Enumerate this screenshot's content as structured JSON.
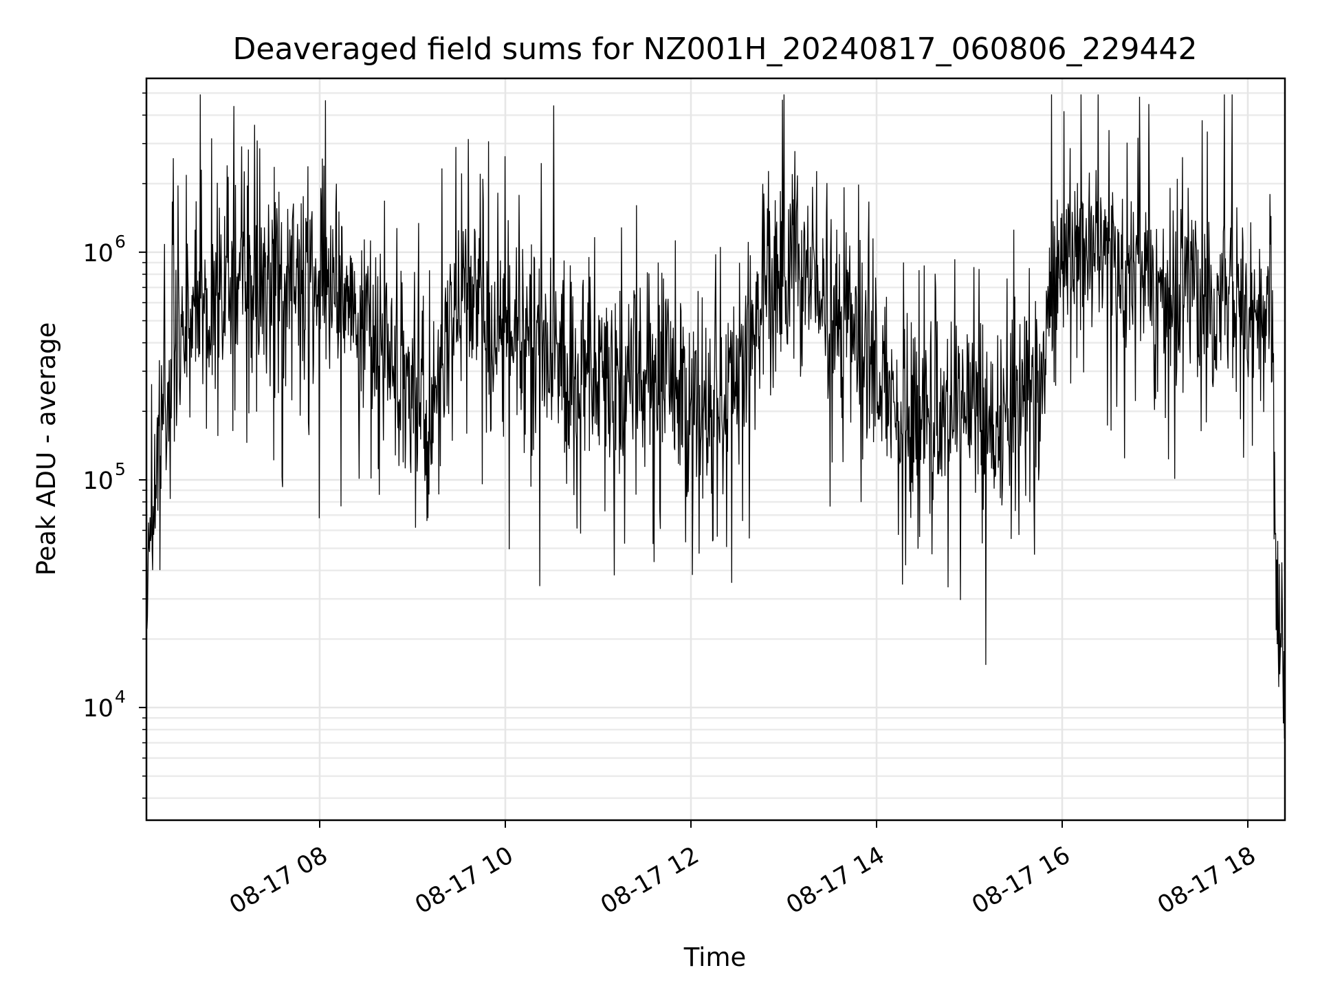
{
  "chart_data": {
    "type": "line",
    "title": "Deaveraged field sums for NZ001H_20240817_060806_229442",
    "xlabel": "Time",
    "ylabel": "Peak ADU - average",
    "x_start": "2024-08-17 06:08:06",
    "x_end": "2024-08-17 18:24:00",
    "xlim": [
      "2024-08-17 06:08",
      "2024-08-17 18:24"
    ],
    "ylim": [
      3200,
      5800000
    ],
    "yscale": "log",
    "grid": true,
    "line_color": "#000000",
    "x_ticks": [
      {
        "label": "08-17 08",
        "time": "2024-08-17 08:00"
      },
      {
        "label": "08-17 10",
        "time": "2024-08-17 10:00"
      },
      {
        "label": "08-17 12",
        "time": "2024-08-17 12:00"
      },
      {
        "label": "08-17 14",
        "time": "2024-08-17 14:00"
      },
      {
        "label": "08-17 16",
        "time": "2024-08-17 16:00"
      },
      {
        "label": "08-17 18",
        "time": "2024-08-17 18:00"
      }
    ],
    "y_ticks": [
      {
        "base": "10",
        "exp": "4",
        "value": 10000
      },
      {
        "base": "10",
        "exp": "5",
        "value": 100000
      },
      {
        "base": "10",
        "exp": "6",
        "value": 1000000
      }
    ],
    "series": [
      {
        "points": [
          [
            "2024-08-17 06:08",
            30000
          ],
          [
            "2024-08-17 06:12",
            90000
          ],
          [
            "2024-08-17 06:18",
            180000
          ],
          [
            "2024-08-17 06:25",
            320000
          ],
          [
            "2024-08-17 06:35",
            480000
          ],
          [
            "2024-08-17 06:50",
            600000
          ],
          [
            "2024-08-17 07:05",
            700000
          ],
          [
            "2024-08-17 07:20",
            650000
          ],
          [
            "2024-08-17 07:35",
            720000
          ],
          [
            "2024-08-17 07:50",
            750000
          ],
          [
            "2024-08-17 08:05",
            650000
          ],
          [
            "2024-08-17 08:20",
            560000
          ],
          [
            "2024-08-17 08:35",
            500000
          ],
          [
            "2024-08-17 08:45",
            340000
          ],
          [
            "2024-08-17 08:55",
            240000
          ],
          [
            "2024-08-17 09:05",
            210000
          ],
          [
            "2024-08-17 09:15",
            260000
          ],
          [
            "2024-08-17 09:25",
            550000
          ],
          [
            "2024-08-17 09:35",
            750000
          ],
          [
            "2024-08-17 09:45",
            560000
          ],
          [
            "2024-08-17 09:55",
            420000
          ],
          [
            "2024-08-17 10:10",
            360000
          ],
          [
            "2024-08-17 10:30",
            320000
          ],
          [
            "2024-08-17 10:50",
            280000
          ],
          [
            "2024-08-17 11:10",
            250000
          ],
          [
            "2024-08-17 11:30",
            300000
          ],
          [
            "2024-08-17 11:50",
            240000
          ],
          [
            "2024-08-17 12:10",
            200000
          ],
          [
            "2024-08-17 12:30",
            250000
          ],
          [
            "2024-08-17 12:45",
            700000
          ],
          [
            "2024-08-17 13:00",
            850000
          ],
          [
            "2024-08-17 13:15",
            800000
          ],
          [
            "2024-08-17 13:30",
            550000
          ],
          [
            "2024-08-17 13:45",
            400000
          ],
          [
            "2024-08-17 14:00",
            300000
          ],
          [
            "2024-08-17 14:15",
            250000
          ],
          [
            "2024-08-17 14:30",
            210000
          ],
          [
            "2024-08-17 14:45",
            200000
          ],
          [
            "2024-08-17 15:00",
            230000
          ],
          [
            "2024-08-17 15:15",
            170000
          ],
          [
            "2024-08-17 15:30",
            240000
          ],
          [
            "2024-08-17 15:45",
            300000
          ],
          [
            "2024-08-17 15:55",
            900000
          ],
          [
            "2024-08-17 16:10",
            1000000
          ],
          [
            "2024-08-17 16:30",
            900000
          ],
          [
            "2024-08-17 16:50",
            700000
          ],
          [
            "2024-08-17 17:10",
            600000
          ],
          [
            "2024-08-17 17:30",
            620000
          ],
          [
            "2024-08-17 17:50",
            600000
          ],
          [
            "2024-08-17 18:05",
            500000
          ],
          [
            "2024-08-17 18:15",
            600000
          ],
          [
            "2024-08-17 18:18",
            40000
          ],
          [
            "2024-08-17 18:21",
            20000
          ],
          [
            "2024-08-17 18:24",
            6000
          ]
        ]
      }
    ]
  }
}
